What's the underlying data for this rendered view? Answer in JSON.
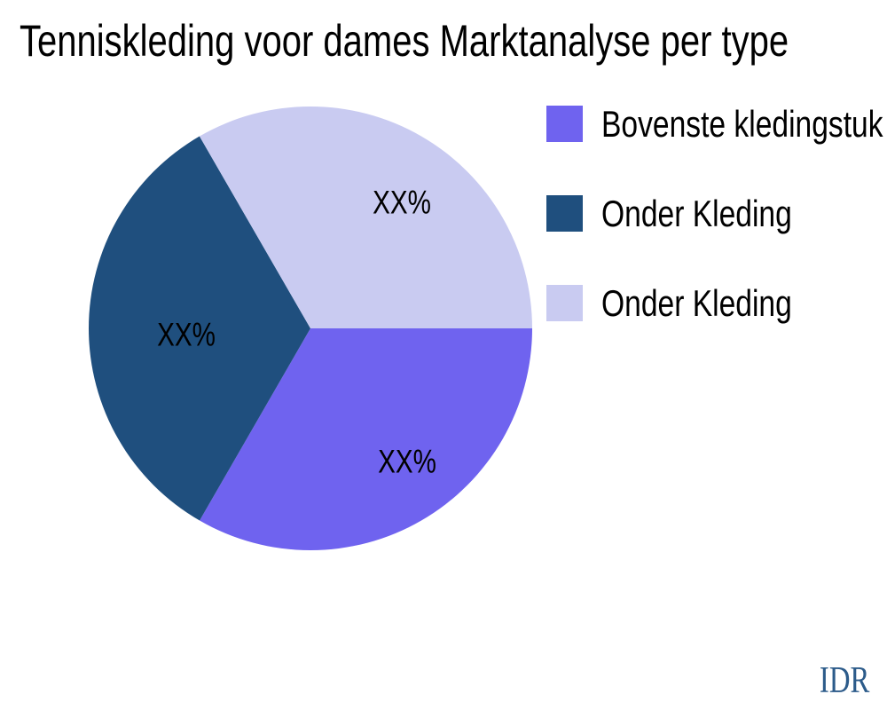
{
  "chart_data": {
    "type": "pie",
    "title": "Tenniskleding voor dames Marktanalyse per type",
    "start_angle_deg": 0,
    "direction": "clockwise",
    "legend_position": "right",
    "grid": false,
    "slices": [
      {
        "label": "Bovenste kledingstuk",
        "value": 33.33,
        "percent_label": "XX%",
        "color": "#6F63EF"
      },
      {
        "label": "Onder Kleding",
        "value": 33.33,
        "percent_label": "XX%",
        "color": "#1F4F7E"
      },
      {
        "label": "Onder Kleding",
        "value": 33.34,
        "percent_label": "XX%",
        "color": "#C9CBF1"
      }
    ]
  },
  "footer": {
    "currency_label": "IDR",
    "color": "#2C5B8A"
  },
  "style": {
    "background": "#FFFFFF",
    "text_color": "#000000"
  }
}
